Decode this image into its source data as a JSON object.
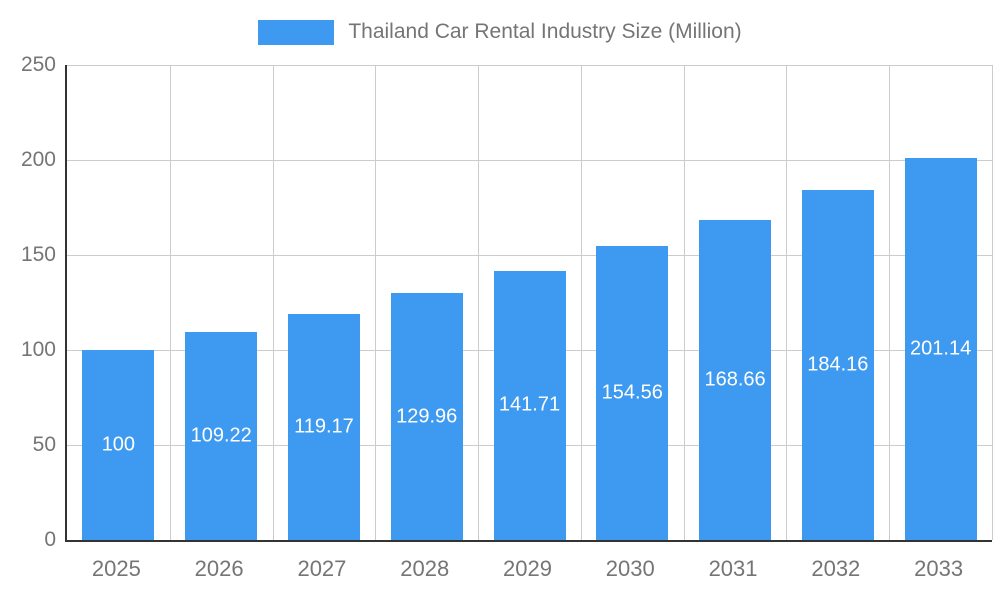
{
  "chart_data": {
    "type": "bar",
    "title": "Thailand Car Rental Industry Size (Million)",
    "categories": [
      "2025",
      "2026",
      "2027",
      "2028",
      "2029",
      "2030",
      "2031",
      "2032",
      "2033"
    ],
    "values": [
      100,
      109.22,
      119.17,
      129.96,
      141.71,
      154.56,
      168.66,
      184.16,
      201.14
    ],
    "value_labels": [
      "100",
      "109.22",
      "119.17",
      "129.96",
      "141.71",
      "154.56",
      "168.66",
      "184.16",
      "201.14"
    ],
    "xlabel": "",
    "ylabel": "",
    "ylim": [
      0,
      250
    ],
    "yticks": [
      0,
      50,
      100,
      150,
      200,
      250
    ],
    "legend_position": "top",
    "grid": "on",
    "colors": {
      "bar": "#3e9af0",
      "value_label": "#ffffff",
      "axis_text": "#757575",
      "gridline": "#cccccc",
      "axis_line": "#333333"
    }
  }
}
